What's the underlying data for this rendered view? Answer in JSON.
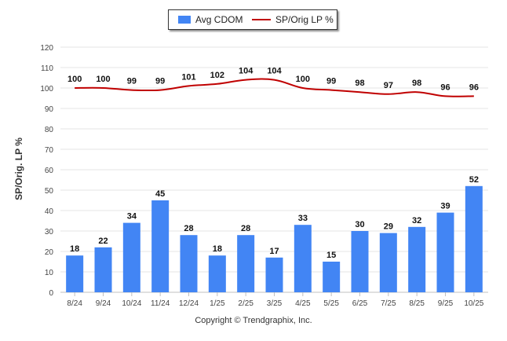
{
  "colors": {
    "bar": "#4285f4",
    "line": "#c00000",
    "grid": "#e6e6e6",
    "axis": "#c0c0c0"
  },
  "legend": {
    "bar_label": "Avg CDOM",
    "line_label": "SP/Orig LP %"
  },
  "footer": {
    "copyright": "Copyright © Trendgraphix, Inc."
  },
  "chart_data": {
    "type": "bar+line",
    "title": "",
    "xlabel": "",
    "ylabel": "SP/Orig. LP %",
    "ylim": [
      0,
      120
    ],
    "yticks": [
      0,
      10,
      20,
      30,
      40,
      50,
      60,
      70,
      80,
      90,
      100,
      110,
      120
    ],
    "grid": true,
    "legend_position": "top-center",
    "categories": [
      "8/24",
      "9/24",
      "10/24",
      "11/24",
      "12/24",
      "1/25",
      "2/25",
      "3/25",
      "4/25",
      "5/25",
      "6/25",
      "7/25",
      "8/25",
      "9/25",
      "10/25"
    ],
    "series": [
      {
        "name": "Avg CDOM",
        "kind": "bar",
        "values": [
          18,
          22,
          34,
          45,
          28,
          18,
          28,
          17,
          33,
          15,
          30,
          29,
          32,
          39,
          52
        ]
      },
      {
        "name": "SP/Orig LP %",
        "kind": "line",
        "values": [
          100,
          100,
          99,
          99,
          101,
          102,
          104,
          104,
          100,
          99,
          98,
          97,
          98,
          96,
          96
        ]
      }
    ]
  }
}
